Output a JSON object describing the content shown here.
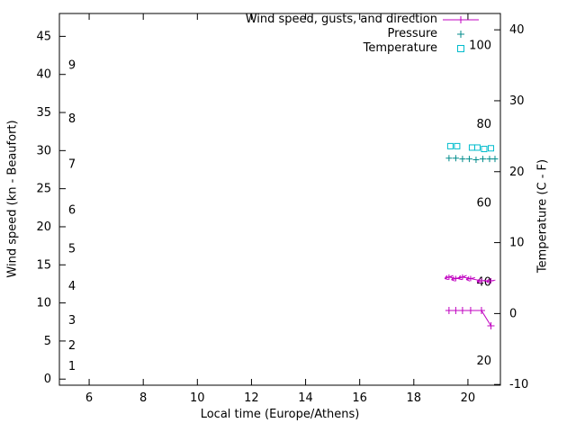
{
  "chart_data": {
    "type": "line",
    "x_axis": {
      "label": "Local time (Europe/Athens)",
      "range": [
        4.9,
        21.2
      ],
      "ticks": [
        6,
        8,
        10,
        12,
        14,
        16,
        18,
        20
      ]
    },
    "y_left": {
      "label": "Wind speed (kn - Beaufort)",
      "range": [
        -0.8,
        48
      ],
      "ticks": [
        0,
        5,
        10,
        15,
        20,
        25,
        30,
        35,
        40,
        45
      ],
      "beaufort_labels": [
        {
          "value": 1.7,
          "label": "1"
        },
        {
          "value": 4.4,
          "label": "2"
        },
        {
          "value": 7.7,
          "label": "3"
        },
        {
          "value": 12.2,
          "label": "4"
        },
        {
          "value": 17.1,
          "label": "5"
        },
        {
          "value": 22.2,
          "label": "6"
        },
        {
          "value": 28.2,
          "label": "7"
        },
        {
          "value": 34.2,
          "label": "8"
        },
        {
          "value": 41.2,
          "label": "9"
        }
      ]
    },
    "y_right": {
      "label": "Temperature (C - F)",
      "range": [
        -10.1,
        42.3
      ],
      "ticks": [
        -10,
        0,
        10,
        20,
        30,
        40
      ],
      "fahrenheit_labels": [
        {
          "label": "20",
          "celsius": -6.7
        },
        {
          "label": "40",
          "celsius": 4.4
        },
        {
          "label": "60",
          "celsius": 15.6
        },
        {
          "label": "80",
          "celsius": 26.7
        },
        {
          "label": "100",
          "celsius": 37.8
        }
      ]
    },
    "legend": {
      "position": "top-right",
      "entries": [
        "Wind speed, gusts, and direction",
        "Pressure",
        "Temperature"
      ]
    },
    "series": [
      {
        "name": "Wind speed, gusts, and direction",
        "color": "#c000c0",
        "axis": "left",
        "style": "line-plus",
        "wind_speed_points": [
          [
            19.3,
            9
          ],
          [
            19.55,
            9
          ],
          [
            19.8,
            9
          ],
          [
            20.1,
            9
          ],
          [
            20.5,
            9
          ],
          [
            20.85,
            7
          ]
        ],
        "gust_points": [
          [
            19.3,
            13.4
          ],
          [
            19.55,
            13.2
          ],
          [
            19.8,
            13.4
          ],
          [
            20.1,
            13.2
          ],
          [
            20.5,
            12.9
          ],
          [
            20.85,
            12.9
          ]
        ],
        "gust_arrow_rotation_deg": [
          160,
          165,
          158,
          168,
          172,
          170
        ]
      },
      {
        "name": "Pressure",
        "color": "#008b8b",
        "axis": "left",
        "style": "plus",
        "points": [
          [
            19.3,
            29.0
          ],
          [
            19.55,
            29.0
          ],
          [
            19.8,
            28.9
          ],
          [
            20.05,
            28.9
          ],
          [
            20.3,
            28.8
          ],
          [
            20.55,
            28.9
          ],
          [
            20.8,
            28.9
          ],
          [
            21.0,
            28.9
          ]
        ]
      },
      {
        "name": "Temperature",
        "color": "#00bccd",
        "axis": "right",
        "style": "open-square",
        "points": [
          [
            19.35,
            23.6
          ],
          [
            19.6,
            23.6
          ],
          [
            20.15,
            23.4
          ],
          [
            20.35,
            23.4
          ],
          [
            20.6,
            23.2
          ],
          [
            20.85,
            23.3
          ]
        ]
      }
    ]
  }
}
